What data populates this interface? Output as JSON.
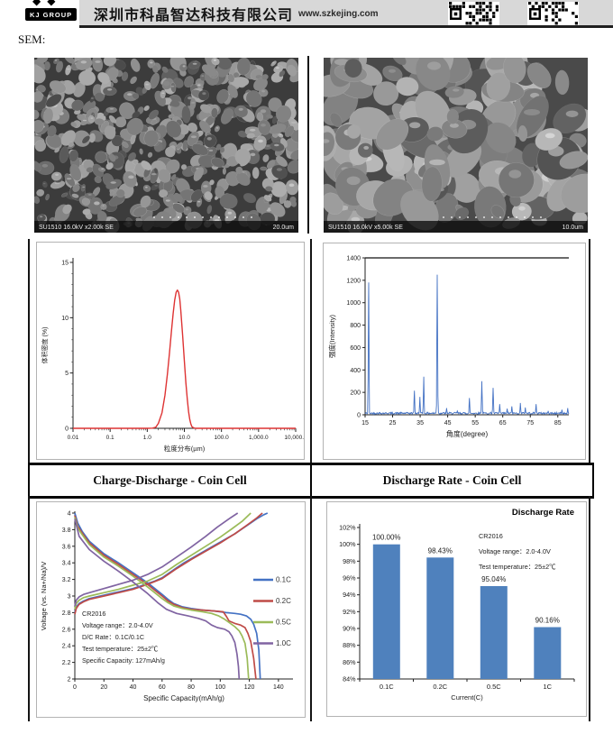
{
  "header": {
    "logo_text": "KJ GROUP",
    "logo_diamonds": "◆◆",
    "company_name": "深圳市科晶智达科技有限公司",
    "website": "www.szkejing.com"
  },
  "section_label": "SEM:",
  "sem": {
    "left": {
      "caption": "SU1510 16.0kV x2.00k SE",
      "scale": "20.0um"
    },
    "right": {
      "caption": "SU1510 16.0kV x5.00k SE",
      "scale": "10.0um"
    }
  },
  "titles": {
    "left": "Charge-Discharge - Coin Cell",
    "right": "Discharge Rate - Coin Cell"
  },
  "chart_data": [
    {
      "id": "psd",
      "type": "line",
      "xlabel": "粒度分布(µm)",
      "ylabel": "体积密度 (%)",
      "x_scale": "log",
      "x_ticks": [
        "0.01",
        "0.1",
        "1.0",
        "10.0",
        "100.0",
        "1,000.0",
        "10,000.0"
      ],
      "x_tick_values": [
        0.01,
        0.1,
        1,
        10,
        100,
        1000,
        10000
      ],
      "y_ticks": [
        0,
        5,
        10,
        15
      ],
      "ylim": [
        0,
        15
      ],
      "line_color": "#de3333",
      "points": [
        [
          0.01,
          0
        ],
        [
          0.1,
          0
        ],
        [
          1.0,
          0
        ],
        [
          1.4,
          0.02
        ],
        [
          1.7,
          0.1
        ],
        [
          2.0,
          0.45
        ],
        [
          2.5,
          1.4
        ],
        [
          3.0,
          3.0
        ],
        [
          3.5,
          4.9
        ],
        [
          4.0,
          6.9
        ],
        [
          4.5,
          8.8
        ],
        [
          5.0,
          10.4
        ],
        [
          5.5,
          11.6
        ],
        [
          6.0,
          12.3
        ],
        [
          6.5,
          12.5
        ],
        [
          7.0,
          12.3
        ],
        [
          7.5,
          11.7
        ],
        [
          8.0,
          10.7
        ],
        [
          9.0,
          8.4
        ],
        [
          10.0,
          6.1
        ],
        [
          11.0,
          4.1
        ],
        [
          12.0,
          2.6
        ],
        [
          13.0,
          1.5
        ],
        [
          14.0,
          0.8
        ],
        [
          15.0,
          0.4
        ],
        [
          16.0,
          0.15
        ],
        [
          18.0,
          0.03
        ],
        [
          20.0,
          0
        ],
        [
          100.0,
          0
        ],
        [
          1000.0,
          0
        ],
        [
          10000.0,
          0
        ]
      ]
    },
    {
      "id": "xrd",
      "type": "line",
      "xlabel": "角度(degree)",
      "ylabel": "强度(Intensity)",
      "xlim": [
        15,
        89
      ],
      "ylim": [
        0,
        1400
      ],
      "x_ticks": [
        15,
        25,
        35,
        45,
        55,
        65,
        75,
        85
      ],
      "y_ticks": [
        0,
        200,
        400,
        600,
        800,
        1000,
        1200,
        1400
      ],
      "line_color": "#4472c4",
      "baseline_noise": [
        6,
        22
      ],
      "peaks": [
        [
          16.3,
          1180
        ],
        [
          32.9,
          215
        ],
        [
          34.9,
          160
        ],
        [
          36.3,
          340
        ],
        [
          41.2,
          1250
        ],
        [
          44.6,
          60
        ],
        [
          48.5,
          35
        ],
        [
          52.9,
          150
        ],
        [
          57.4,
          300
        ],
        [
          61.5,
          240
        ],
        [
          63.9,
          95
        ],
        [
          66.6,
          55
        ],
        [
          68.3,
          75
        ],
        [
          71.4,
          105
        ],
        [
          73.2,
          65
        ],
        [
          77.1,
          95
        ],
        [
          81.5,
          35
        ],
        [
          86.5,
          45
        ],
        [
          88.6,
          60
        ]
      ]
    },
    {
      "id": "cd",
      "type": "line",
      "xlabel": "Specific Capacity(mAh/g)",
      "ylabel": "Voltage (vs. Na+/Na)/V",
      "xlim": [
        0,
        150
      ],
      "ylim": [
        2,
        4
      ],
      "x_ticks": [
        0,
        20,
        40,
        60,
        80,
        100,
        120,
        140
      ],
      "y_ticks": [
        2,
        2.2,
        2.4,
        2.6,
        2.8,
        3,
        3.2,
        3.4,
        3.6,
        3.8,
        4
      ],
      "annotations": [
        "CR2016",
        "Voltage range：2.0-4.0V",
        "D/C Rate：0.1C/0.1C",
        "Test temperature：25±2℃",
        "Specific Capacity: 127mAh/g"
      ],
      "series": [
        {
          "name": "0.1C",
          "color": "#4472c4",
          "discharge": [
            [
              0,
              4.0
            ],
            [
              2,
              3.88
            ],
            [
              5,
              3.78
            ],
            [
              10,
              3.66
            ],
            [
              20,
              3.51
            ],
            [
              30,
              3.4
            ],
            [
              40,
              3.28
            ],
            [
              50,
              3.16
            ],
            [
              55,
              3.09
            ],
            [
              60,
              3.02
            ],
            [
              64,
              2.96
            ],
            [
              68,
              2.91
            ],
            [
              74,
              2.87
            ],
            [
              80,
              2.85
            ],
            [
              88,
              2.83
            ],
            [
              96,
              2.82
            ],
            [
              104,
              2.8
            ],
            [
              110,
              2.79
            ],
            [
              114,
              2.78
            ],
            [
              118,
              2.76
            ],
            [
              121,
              2.72
            ],
            [
              123,
              2.66
            ],
            [
              125,
              2.55
            ],
            [
              126.5,
              2.35
            ],
            [
              127.5,
              2.0
            ]
          ],
          "charge": [
            [
              0,
              2.8
            ],
            [
              1,
              2.87
            ],
            [
              3,
              2.91
            ],
            [
              6,
              2.94
            ],
            [
              10,
              2.97
            ],
            [
              15,
              2.99
            ],
            [
              20,
              3.01
            ],
            [
              25,
              3.03
            ],
            [
              30,
              3.05
            ],
            [
              35,
              3.07
            ],
            [
              40,
              3.09
            ],
            [
              45,
              3.12
            ],
            [
              50,
              3.15
            ],
            [
              55,
              3.18
            ],
            [
              60,
              3.22
            ],
            [
              65,
              3.28
            ],
            [
              70,
              3.34
            ],
            [
              75,
              3.4
            ],
            [
              80,
              3.45
            ],
            [
              85,
              3.5
            ],
            [
              90,
              3.55
            ],
            [
              95,
              3.6
            ],
            [
              100,
              3.65
            ],
            [
              105,
              3.7
            ],
            [
              110,
              3.75
            ],
            [
              115,
              3.81
            ],
            [
              120,
              3.87
            ],
            [
              125,
              3.93
            ],
            [
              130,
              3.98
            ],
            [
              132.5,
              4.0
            ]
          ]
        },
        {
          "name": "0.2C",
          "color": "#bf4b47",
          "discharge": [
            [
              0,
              3.97
            ],
            [
              2,
              3.84
            ],
            [
              5,
              3.76
            ],
            [
              10,
              3.64
            ],
            [
              20,
              3.49
            ],
            [
              30,
              3.38
            ],
            [
              40,
              3.26
            ],
            [
              50,
              3.14
            ],
            [
              55,
              3.07
            ],
            [
              60,
              3.0
            ],
            [
              64,
              2.94
            ],
            [
              68,
              2.9
            ],
            [
              74,
              2.86
            ],
            [
              80,
              2.84
            ],
            [
              88,
              2.83
            ],
            [
              96,
              2.82
            ],
            [
              102,
              2.81
            ],
            [
              104,
              2.76
            ],
            [
              106,
              2.7
            ],
            [
              110,
              2.67
            ],
            [
              114,
              2.65
            ],
            [
              117,
              2.62
            ],
            [
              119,
              2.55
            ],
            [
              121,
              2.45
            ],
            [
              123,
              2.25
            ],
            [
              124.5,
              2.0
            ]
          ],
          "charge": [
            [
              0,
              2.78
            ],
            [
              1,
              2.85
            ],
            [
              3,
              2.9
            ],
            [
              6,
              2.93
            ],
            [
              10,
              2.96
            ],
            [
              20,
              3.0
            ],
            [
              30,
              3.04
            ],
            [
              40,
              3.08
            ],
            [
              50,
              3.14
            ],
            [
              60,
              3.21
            ],
            [
              70,
              3.33
            ],
            [
              80,
              3.44
            ],
            [
              90,
              3.54
            ],
            [
              100,
              3.64
            ],
            [
              110,
              3.75
            ],
            [
              118,
              3.85
            ],
            [
              125,
              3.94
            ],
            [
              129,
              4.0
            ]
          ]
        },
        {
          "name": "0.5C",
          "color": "#9bbb59",
          "discharge": [
            [
              0,
              3.95
            ],
            [
              2,
              3.82
            ],
            [
              5,
              3.74
            ],
            [
              10,
              3.62
            ],
            [
              20,
              3.47
            ],
            [
              30,
              3.36
            ],
            [
              40,
              3.24
            ],
            [
              50,
              3.11
            ],
            [
              55,
              3.04
            ],
            [
              60,
              2.97
            ],
            [
              64,
              2.92
            ],
            [
              68,
              2.88
            ],
            [
              74,
              2.85
            ],
            [
              80,
              2.83
            ],
            [
              88,
              2.81
            ],
            [
              94,
              2.79
            ],
            [
              99,
              2.76
            ],
            [
              103,
              2.72
            ],
            [
              107,
              2.67
            ],
            [
              110,
              2.63
            ],
            [
              113,
              2.58
            ],
            [
              115,
              2.52
            ],
            [
              117,
              2.43
            ],
            [
              118.5,
              2.25
            ],
            [
              119.5,
              2.0
            ]
          ],
          "charge": [
            [
              0,
              2.84
            ],
            [
              1,
              2.91
            ],
            [
              3,
              2.95
            ],
            [
              6,
              2.98
            ],
            [
              10,
              3.0
            ],
            [
              20,
              3.04
            ],
            [
              30,
              3.08
            ],
            [
              40,
              3.13
            ],
            [
              50,
              3.18
            ],
            [
              60,
              3.26
            ],
            [
              70,
              3.38
            ],
            [
              80,
              3.49
            ],
            [
              90,
              3.6
            ],
            [
              100,
              3.71
            ],
            [
              108,
              3.81
            ],
            [
              115,
              3.9
            ],
            [
              121,
              4.0
            ]
          ]
        },
        {
          "name": "1.0C",
          "color": "#8064a2",
          "discharge": [
            [
              0,
              3.93
            ],
            [
              3,
              3.72
            ],
            [
              10,
              3.56
            ],
            [
              20,
              3.42
            ],
            [
              30,
              3.3
            ],
            [
              40,
              3.17
            ],
            [
              50,
              3.03
            ],
            [
              57,
              2.92
            ],
            [
              63,
              2.84
            ],
            [
              70,
              2.79
            ],
            [
              78,
              2.76
            ],
            [
              85,
              2.73
            ],
            [
              90,
              2.7
            ],
            [
              94,
              2.65
            ],
            [
              98,
              2.62
            ],
            [
              103,
              2.6
            ],
            [
              106,
              2.57
            ],
            [
              108,
              2.52
            ],
            [
              110,
              2.44
            ],
            [
              111.5,
              2.3
            ],
            [
              112.5,
              2.15
            ],
            [
              113,
              2.0
            ]
          ],
          "charge": [
            [
              0,
              2.88
            ],
            [
              1,
              2.95
            ],
            [
              3,
              2.99
            ],
            [
              6,
              3.02
            ],
            [
              10,
              3.04
            ],
            [
              20,
              3.09
            ],
            [
              30,
              3.14
            ],
            [
              40,
              3.19
            ],
            [
              50,
              3.26
            ],
            [
              60,
              3.35
            ],
            [
              70,
              3.47
            ],
            [
              80,
              3.59
            ],
            [
              90,
              3.72
            ],
            [
              98,
              3.83
            ],
            [
              106,
              3.93
            ],
            [
              112,
              4.0
            ]
          ]
        }
      ]
    },
    {
      "id": "rate",
      "type": "bar",
      "title": "Discharge Rate",
      "xlabel": "Current(C)",
      "categories": [
        "0.1C",
        "0.2C",
        "0.5C",
        "1C"
      ],
      "values": [
        100.0,
        98.43,
        95.04,
        90.16
      ],
      "value_labels": [
        "100.00%",
        "98.43%",
        "95.04%",
        "90.16%"
      ],
      "ylim": [
        84,
        102
      ],
      "y_ticks": [
        84,
        86,
        88,
        90,
        92,
        94,
        96,
        98,
        100,
        102
      ],
      "bar_color": "#4f81bd",
      "annotations": [
        "CR2016",
        "Voltage range：2.0-4.0V",
        "Test temperature：25±2℃"
      ]
    }
  ]
}
